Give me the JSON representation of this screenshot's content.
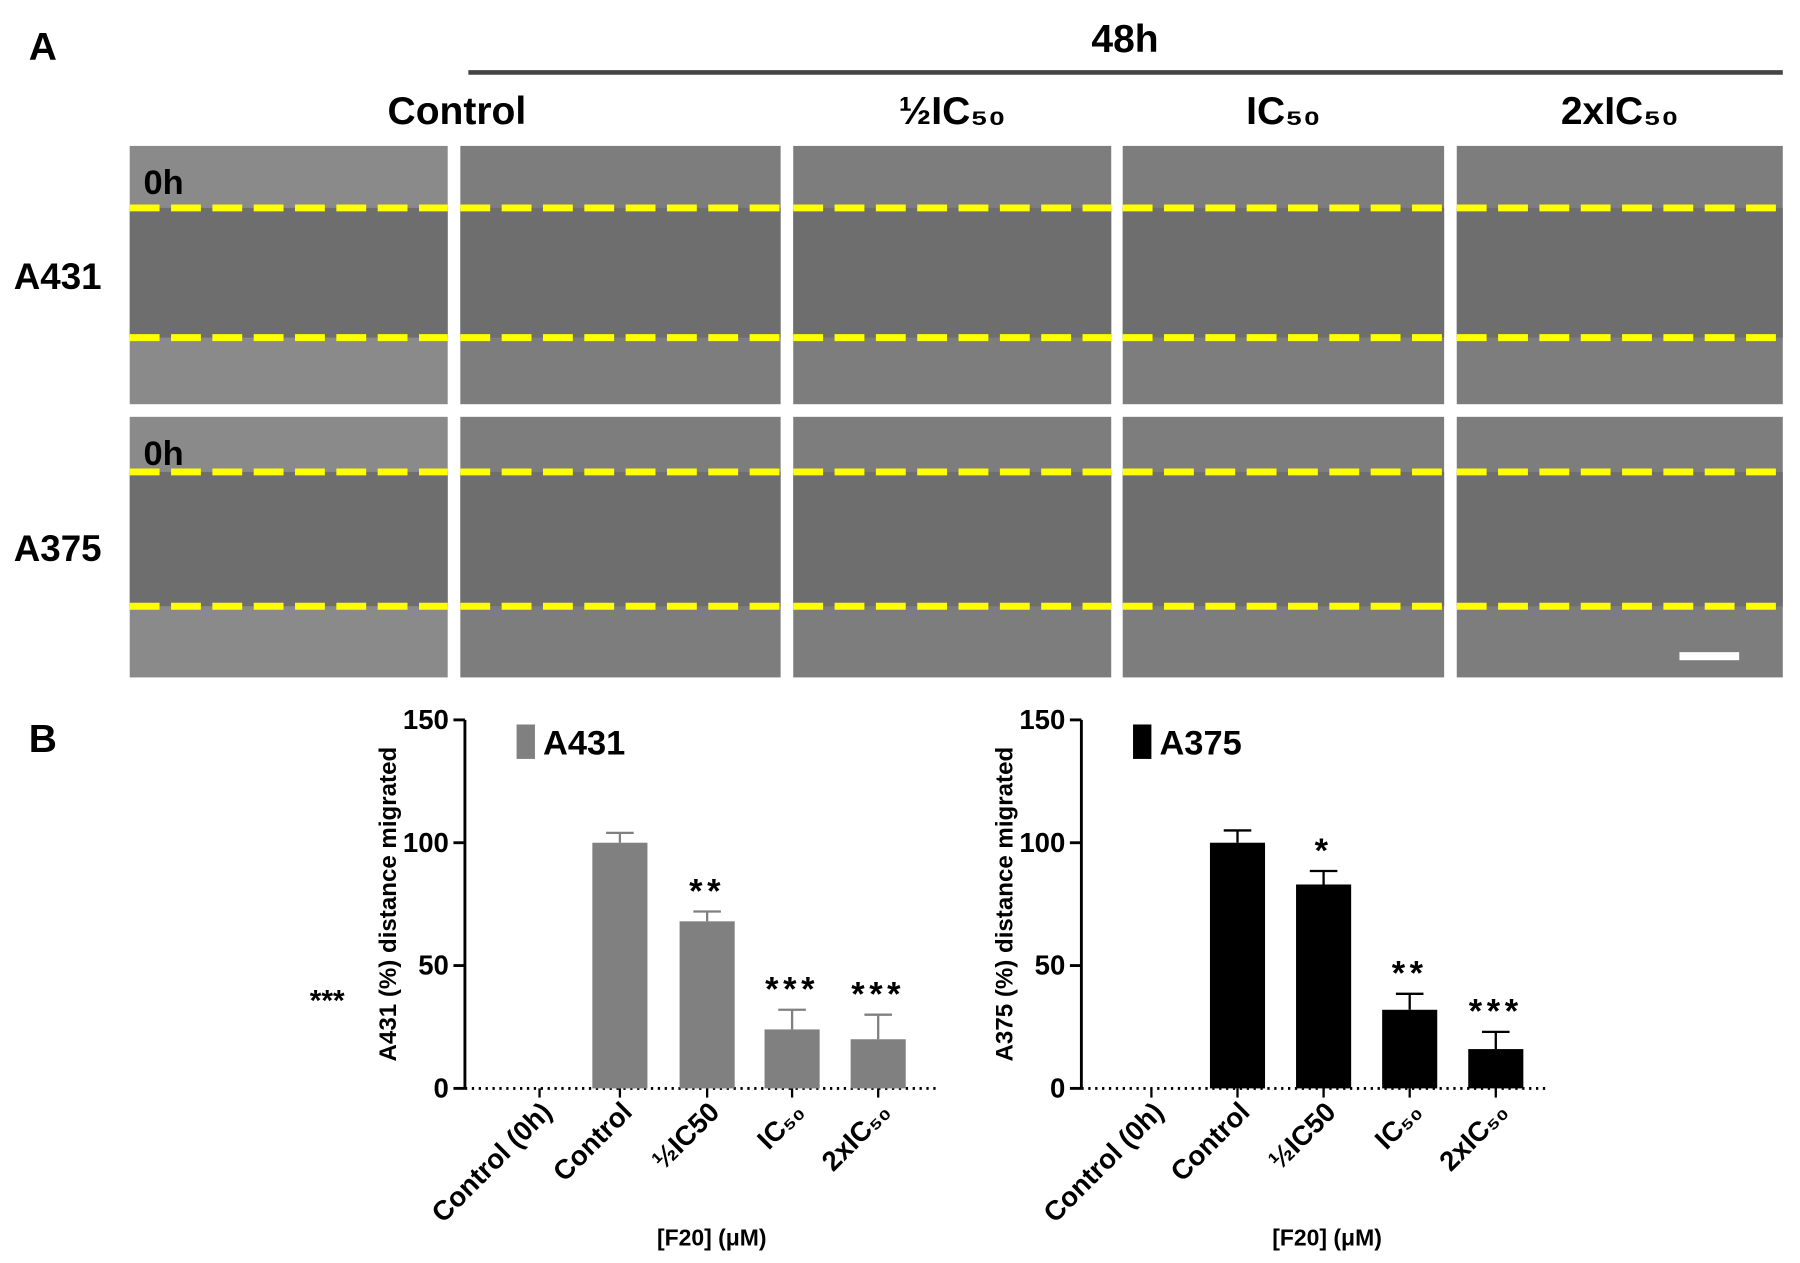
{
  "panel_a": {
    "label": "A",
    "time": "48h",
    "columns": [
      "Control",
      "½IC₅₀",
      "IC₅₀",
      "2xIC₅₀"
    ],
    "rows": [
      "A431",
      "A375"
    ],
    "start_label": "0h"
  },
  "panel_b_label": "B",
  "chart_data": [
    {
      "type": "bar",
      "annotation": "***",
      "ylabel": "A431 (%) distance migrated",
      "xlabel": "[F20] (μM)",
      "categories": [
        "Control (0h)",
        "Control",
        "½IC50",
        "IC₅₀",
        "2xIC₅₀"
      ],
      "series": [
        {
          "name": "A431",
          "color": "#808080",
          "values": [
            0,
            100,
            68,
            24,
            20
          ],
          "errors": [
            null,
            4,
            4,
            8,
            10
          ],
          "significance": [
            null,
            null,
            "**",
            "***",
            "***"
          ]
        }
      ],
      "ylim": [
        0,
        150
      ],
      "yticks": [
        0,
        50,
        100,
        150
      ]
    },
    {
      "type": "bar",
      "ylabel": "A375 (%) distance migrated",
      "xlabel": "[F20] (μM)",
      "categories": [
        "Control (0h)",
        "Control",
        "½IC50",
        "IC₅₀",
        "2xIC₅₀"
      ],
      "series": [
        {
          "name": "A375",
          "color": "#000000",
          "values": [
            0,
            100,
            83,
            32,
            16
          ],
          "errors": [
            null,
            5,
            5.5,
            6.5,
            7
          ],
          "significance": [
            null,
            null,
            "*",
            "**",
            "***"
          ]
        }
      ],
      "ylim": [
        0,
        150
      ],
      "yticks": [
        0,
        50,
        100,
        150
      ]
    }
  ]
}
